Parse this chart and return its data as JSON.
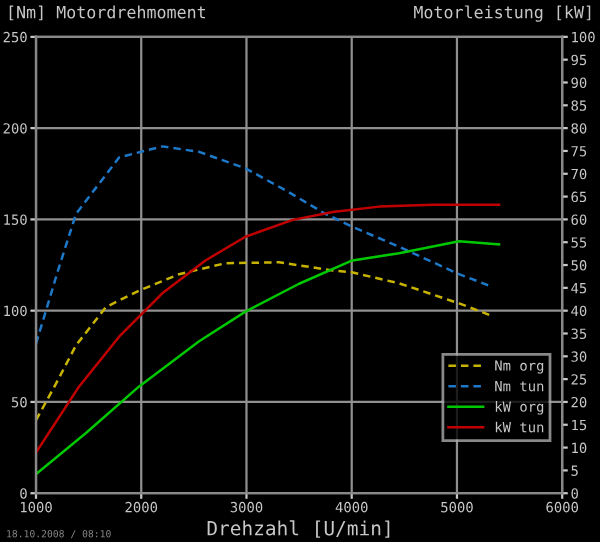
{
  "chart_data": {
    "type": "line",
    "ylabel": "[Nm] Motordrehmoment",
    "y2label": "Motorleistung [kW]",
    "xlabel": "Drehzahl [U/min]",
    "annotations": [
      "18.10.2008 / 08:10"
    ],
    "xlim": [
      1000,
      6000
    ],
    "xticks": [
      1000,
      2000,
      3000,
      4000,
      5000,
      6000
    ],
    "ylim": [
      0,
      250
    ],
    "yticks": [
      0,
      50,
      100,
      150,
      200,
      250
    ],
    "y2lim": [
      0,
      100
    ],
    "y2ticks": [
      0,
      5,
      10,
      15,
      20,
      25,
      30,
      35,
      40,
      45,
      50,
      55,
      60,
      65,
      70,
      75,
      80,
      85,
      90,
      95,
      100
    ],
    "grid": true,
    "legend": "bottom right",
    "series": [
      {
        "name": "Nm org",
        "color": "#c8b400",
        "line_style": "dashed",
        "x": [
          1000,
          1190,
          1380,
          1665,
          1980,
          2360,
          2800,
          3310,
          3820,
          4000,
          4450,
          5020,
          5340
        ],
        "values": [
          40,
          60,
          81,
          102,
          111,
          120,
          126,
          126.5,
          122,
          121,
          115,
          104,
          97
        ]
      },
      {
        "name": "Nm tun",
        "color": "#1e78c8",
        "line_style": "dashed",
        "x": [
          1000,
          1095,
          1209,
          1380,
          1791,
          2200,
          2550,
          2990,
          3370,
          3750,
          4006,
          4450,
          5020,
          5340
        ],
        "values": [
          82,
          100,
          122,
          153,
          184,
          190,
          187,
          178,
          166,
          153,
          146,
          135,
          120,
          113
        ]
      },
      {
        "name": "kW org",
        "color": "#00c800",
        "line_style": "solid",
        "axis": "y2",
        "x": [
          1000,
          1475,
          1980,
          2550,
          2990,
          3500,
          4006,
          4450,
          5020,
          5400
        ],
        "values": [
          4.2,
          13.2,
          23.4,
          33.3,
          39.8,
          45.9,
          51,
          52.6,
          55.2,
          54.5
        ]
      },
      {
        "name": "kW tun",
        "color": "#c00000",
        "line_style": "solid",
        "axis": "y2",
        "x": [
          1000,
          1410,
          1790,
          2200,
          2610,
          2990,
          3440,
          3820,
          4260,
          4770,
          5400
        ],
        "values": [
          8.9,
          23.4,
          34.3,
          43.8,
          51,
          56.2,
          59.9,
          61.6,
          62.8,
          63.2,
          63.2
        ]
      }
    ]
  }
}
